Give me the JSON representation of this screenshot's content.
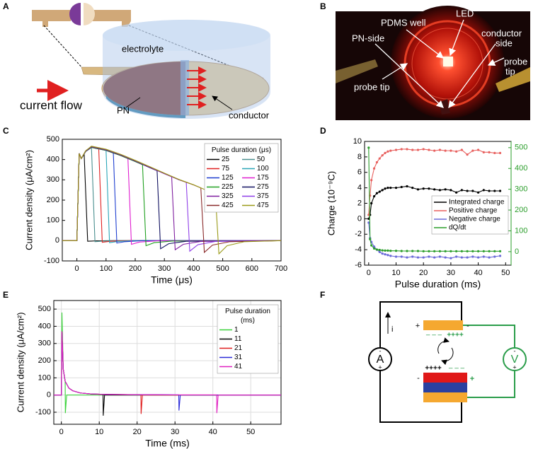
{
  "panel_labels": [
    "A",
    "B",
    "C",
    "D",
    "E",
    "F"
  ],
  "diagram_a": {
    "electrolyte": "electrolyte",
    "current_flow": "current flow",
    "pn": "PN",
    "conductor": "conductor"
  },
  "photo_b": {
    "pdms_well": "PDMS well",
    "led": "LED",
    "pn_side": "PN-side",
    "conductor_side": [
      "conductor",
      "side"
    ],
    "probe_tip_right": [
      "probe",
      "tip"
    ],
    "probe_tip_left": "probe tip"
  },
  "circuit_f": {
    "current": "i",
    "ammeter": {
      "label": "A",
      "top": "-",
      "bottom": "+"
    },
    "voltmeter": {
      "label": "V",
      "top": "-",
      "bottom": "+"
    },
    "top_plate": {
      "left": "+",
      "right": "-",
      "below_left": "– – –",
      "below_right": "++++"
    },
    "bottom_plate": {
      "left": "-",
      "right": "+",
      "above_left": "++++",
      "above_right": "– – –"
    }
  },
  "chart_data": [
    {
      "type": "line",
      "xlabel": "Time (μs)",
      "ylabel": "Current density (μA/cm²)",
      "xlim": [
        -50,
        700
      ],
      "xticks": [
        0,
        100,
        200,
        300,
        400,
        500,
        600,
        700
      ],
      "ylim": [
        -100,
        500
      ],
      "yticks": [
        -100,
        0,
        100,
        200,
        300,
        400,
        500
      ],
      "grid": false,
      "legend": "upper right",
      "legend_columns": 2,
      "legend_title": [
        "Pulse duration (μs)"
      ],
      "series": [
        {
          "name": "25",
          "color": "#000000",
          "x": [
            -50,
            0,
            8,
            15,
            25,
            37,
            65,
            125,
            700
          ],
          "values": [
            0,
            0,
            430,
            405,
            425,
            -3,
            -1,
            0,
            0
          ]
        },
        {
          "name": "50",
          "color": "#4a8f8f",
          "x": [
            -50,
            0,
            8,
            15,
            30,
            50,
            62,
            90,
            150,
            700
          ],
          "values": [
            0,
            0,
            430,
            405,
            440,
            460,
            -5,
            -2,
            0,
            0
          ]
        },
        {
          "name": "75",
          "color": "#e02020",
          "x": [
            -50,
            0,
            8,
            15,
            30,
            50,
            75,
            87,
            115,
            175,
            700
          ],
          "values": [
            0,
            0,
            430,
            405,
            440,
            460,
            452,
            -8,
            -3,
            0,
            0
          ]
        },
        {
          "name": "100",
          "color": "#2aa6b8",
          "x": [
            -50,
            0,
            8,
            15,
            30,
            50,
            100,
            112,
            140,
            200,
            700
          ],
          "values": [
            0,
            0,
            430,
            405,
            440,
            460,
            445,
            -10,
            -4,
            0,
            0
          ]
        },
        {
          "name": "125",
          "color": "#1f3fd0",
          "x": [
            -50,
            0,
            8,
            15,
            30,
            50,
            100,
            125,
            137,
            165,
            225,
            700
          ],
          "values": [
            0,
            0,
            430,
            405,
            440,
            460,
            445,
            432,
            -12,
            -5,
            0,
            0
          ]
        },
        {
          "name": "175",
          "color": "#e020d0",
          "x": [
            -50,
            0,
            8,
            15,
            30,
            50,
            100,
            150,
            175,
            187,
            215,
            275,
            700
          ],
          "values": [
            0,
            0,
            430,
            405,
            440,
            460,
            445,
            420,
            405,
            -18,
            -7,
            -1,
            0
          ]
        },
        {
          "name": "225",
          "color": "#20a020",
          "x": [
            -50,
            0,
            8,
            15,
            30,
            50,
            100,
            150,
            200,
            225,
            237,
            265,
            325,
            700
          ],
          "values": [
            0,
            0,
            430,
            405,
            440,
            460,
            445,
            420,
            390,
            375,
            -25,
            -10,
            -2,
            0
          ]
        },
        {
          "name": "275",
          "color": "#101060",
          "x": [
            -50,
            0,
            8,
            15,
            30,
            50,
            100,
            150,
            200,
            250,
            275,
            287,
            315,
            375,
            700
          ],
          "values": [
            0,
            0,
            430,
            405,
            440,
            462,
            447,
            422,
            392,
            360,
            345,
            -40,
            -15,
            -3,
            0
          ]
        },
        {
          "name": "325",
          "color": "#8020a0",
          "x": [
            -50,
            0,
            8,
            15,
            30,
            50,
            100,
            150,
            200,
            250,
            300,
            325,
            337,
            365,
            425,
            700
          ],
          "values": [
            0,
            0,
            430,
            405,
            442,
            463,
            448,
            423,
            393,
            362,
            330,
            315,
            -45,
            -18,
            -4,
            0
          ]
        },
        {
          "name": "375",
          "color": "#9040e8",
          "x": [
            -50,
            0,
            8,
            15,
            30,
            50,
            100,
            150,
            200,
            250,
            300,
            350,
            375,
            387,
            415,
            475,
            700
          ],
          "values": [
            0,
            0,
            430,
            405,
            442,
            464,
            449,
            424,
            394,
            363,
            331,
            300,
            288,
            -52,
            -20,
            -4,
            0
          ]
        },
        {
          "name": "425",
          "color": "#8a2a2a",
          "x": [
            -50,
            0,
            8,
            15,
            30,
            50,
            100,
            150,
            200,
            250,
            300,
            350,
            400,
            425,
            437,
            465,
            525,
            700
          ],
          "values": [
            0,
            0,
            430,
            405,
            443,
            465,
            450,
            425,
            395,
            364,
            332,
            301,
            275,
            260,
            -58,
            -22,
            -5,
            0
          ]
        },
        {
          "name": "475",
          "color": "#9a9a18",
          "x": [
            -50,
            0,
            8,
            15,
            30,
            50,
            100,
            150,
            200,
            250,
            300,
            350,
            400,
            450,
            475,
            487,
            515,
            575,
            700
          ],
          "values": [
            0,
            0,
            430,
            405,
            443,
            466,
            451,
            426,
            396,
            365,
            333,
            302,
            276,
            245,
            225,
            -65,
            -25,
            -5,
            0
          ]
        }
      ]
    },
    {
      "type": "line",
      "xlabel": "Pulse duration (ms)",
      "ylabel": "Charge (10⁻⁹C)",
      "xlim": [
        -1.5,
        52
      ],
      "xticks": [
        0,
        10,
        20,
        30,
        40,
        50
      ],
      "ylim": [
        -6,
        10
      ],
      "yticks": [
        -6,
        -4,
        -2,
        0,
        2,
        4,
        6,
        8,
        10
      ],
      "y2lim": [
        -65,
        530
      ],
      "y2ticks": [
        0,
        100,
        200,
        300,
        400,
        500
      ],
      "y2_color": "#2a9d2a",
      "grid": false,
      "markers": true,
      "legend": "lower right",
      "legend_columns": 1,
      "x": [
        0,
        0.5,
        1,
        2,
        3,
        4,
        5,
        6,
        7,
        8,
        10,
        12,
        14,
        16,
        18,
        20,
        22,
        24,
        26,
        28,
        30,
        32,
        34,
        36,
        38,
        40,
        42,
        44,
        46,
        48
      ],
      "series": [
        {
          "name": "Integrated charge",
          "color": "#000000",
          "values": [
            0,
            0.5,
            2,
            2.9,
            3.3,
            3.5,
            3.7,
            3.9,
            4,
            4,
            4,
            4.1,
            4.2,
            4,
            3.8,
            3.9,
            3.9,
            3.8,
            3.7,
            3.8,
            3.7,
            3.4,
            3.7,
            3.6,
            3.6,
            3.4,
            3.7,
            3.6,
            3.6,
            3.6
          ]
        },
        {
          "name": "Positive charge",
          "color": "#e8605e",
          "values": [
            0.5,
            3,
            5,
            6.5,
            7.3,
            7.8,
            8.2,
            8.5,
            8.7,
            8.8,
            8.9,
            9,
            9,
            8.9,
            8.9,
            9,
            8.9,
            8.8,
            8.9,
            8.8,
            8.8,
            8.7,
            8.9,
            8.3,
            8.8,
            8.9,
            8.6,
            8.6,
            8.5,
            8.5
          ]
        },
        {
          "name": "Negative charge",
          "color": "#6a6ad8",
          "values": [
            -0.5,
            -2.5,
            -3,
            -3.6,
            -4,
            -4.3,
            -4.5,
            -4.6,
            -4.7,
            -4.8,
            -4.9,
            -4.9,
            -5,
            -4.9,
            -5,
            -5,
            -4.9,
            -5,
            -4.9,
            -5,
            -5.1,
            -4.9,
            -5,
            -5,
            -4.9,
            -5,
            -4.9,
            -5,
            -4.9,
            -4.8
          ]
        },
        {
          "name": "dQ/dt",
          "color": "#2a9d2a",
          "axis": "y2",
          "values": [
            500,
            60,
            30,
            15,
            10,
            8,
            6,
            5,
            5,
            4,
            4,
            3,
            3,
            3,
            3,
            2,
            2,
            2,
            2,
            2,
            2,
            2,
            2,
            2,
            2,
            2,
            2,
            2,
            2,
            2
          ]
        }
      ]
    },
    {
      "type": "line",
      "xlabel": "Time (ms)",
      "ylabel": "Current density (μA/cm²)",
      "xlim": [
        -2,
        58
      ],
      "xticks": [
        0,
        10,
        20,
        30,
        40,
        50
      ],
      "ylim": [
        -170,
        550
      ],
      "yticks": [
        -100,
        0,
        100,
        200,
        300,
        400,
        500
      ],
      "grid": true,
      "legend": "upper right",
      "legend_columns": 1,
      "legend_title": [
        "Pulse duration",
        "(ms)"
      ],
      "series": [
        {
          "name": "1",
          "color": "#3ad23a",
          "x": [
            -2,
            0,
            0.15,
            0.5,
            1,
            1.05,
            1.4,
            58
          ],
          "values": [
            0,
            0,
            480,
            150,
            80,
            -105,
            0,
            0
          ]
        },
        {
          "name": "11",
          "color": "#000000",
          "x": [
            -2,
            0,
            0.15,
            0.5,
            1,
            2,
            3,
            5,
            8,
            11,
            11.05,
            11.4,
            58
          ],
          "values": [
            0,
            0,
            370,
            150,
            80,
            40,
            25,
            12,
            6,
            4,
            -120,
            0,
            0
          ]
        },
        {
          "name": "21",
          "color": "#e02020",
          "x": [
            -2,
            0,
            0.15,
            0.5,
            1,
            2,
            3,
            5,
            8,
            11,
            15,
            21,
            21.05,
            21.4,
            58
          ],
          "values": [
            0,
            0,
            370,
            150,
            80,
            40,
            25,
            12,
            6,
            4,
            3,
            2,
            -110,
            0,
            0
          ]
        },
        {
          "name": "31",
          "color": "#2a2ad8",
          "x": [
            -2,
            0,
            0.15,
            0.5,
            1,
            2,
            3,
            5,
            8,
            11,
            15,
            20,
            25,
            31,
            31.05,
            31.4,
            58
          ],
          "values": [
            0,
            0,
            370,
            150,
            80,
            40,
            25,
            12,
            6,
            4,
            3,
            2,
            2,
            1,
            -90,
            0,
            0
          ]
        },
        {
          "name": "41",
          "color": "#e020c0",
          "x": [
            -2,
            0,
            0.15,
            0.5,
            1,
            2,
            3,
            5,
            8,
            11,
            15,
            20,
            25,
            30,
            35,
            41,
            41.05,
            41.4,
            58
          ],
          "values": [
            0,
            0,
            370,
            150,
            80,
            40,
            25,
            12,
            6,
            4,
            3,
            2,
            2,
            1,
            1,
            1,
            -105,
            0,
            0
          ]
        }
      ]
    }
  ]
}
